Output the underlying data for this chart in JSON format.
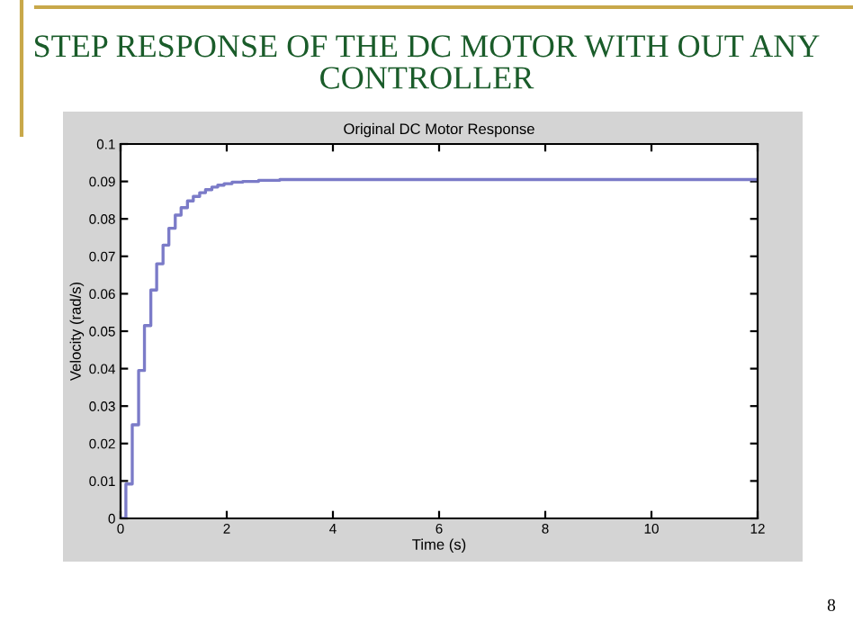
{
  "chart_data": {
    "type": "step",
    "title": "Original DC Motor Response",
    "xlabel": "Time (s)",
    "ylabel": "Velocity (rad/s)",
    "annotations": [
      "STEP RESPONSE OF THE DC MOTOR WITH OUT ANY CONTROLLER",
      "8"
    ],
    "x": [
      0,
      0.1,
      0.22,
      0.34,
      0.45,
      0.57,
      0.68,
      0.8,
      0.91,
      1.03,
      1.14,
      1.26,
      1.37,
      1.49,
      1.6,
      1.72,
      1.83,
      1.95,
      2.1,
      2.3,
      2.6,
      3.0,
      12
    ],
    "series": [
      {
        "color": "#7b7bc8",
        "values": [
          0,
          0.0092,
          0.025,
          0.0395,
          0.0515,
          0.061,
          0.068,
          0.073,
          0.0775,
          0.081,
          0.083,
          0.0848,
          0.086,
          0.087,
          0.0878,
          0.0885,
          0.089,
          0.0894,
          0.0898,
          0.09,
          0.0903,
          0.0905,
          0.0905
        ]
      }
    ],
    "xlim": [
      0,
      12
    ],
    "xticks": [
      0,
      2,
      4,
      6,
      8,
      10,
      12
    ],
    "ylim": [
      0,
      0.1
    ],
    "yticks": [
      0,
      0.01,
      0.02,
      0.03,
      0.04,
      0.05,
      0.06,
      0.07,
      0.08,
      0.09,
      0.1
    ],
    "grid": false,
    "legend": false
  }
}
